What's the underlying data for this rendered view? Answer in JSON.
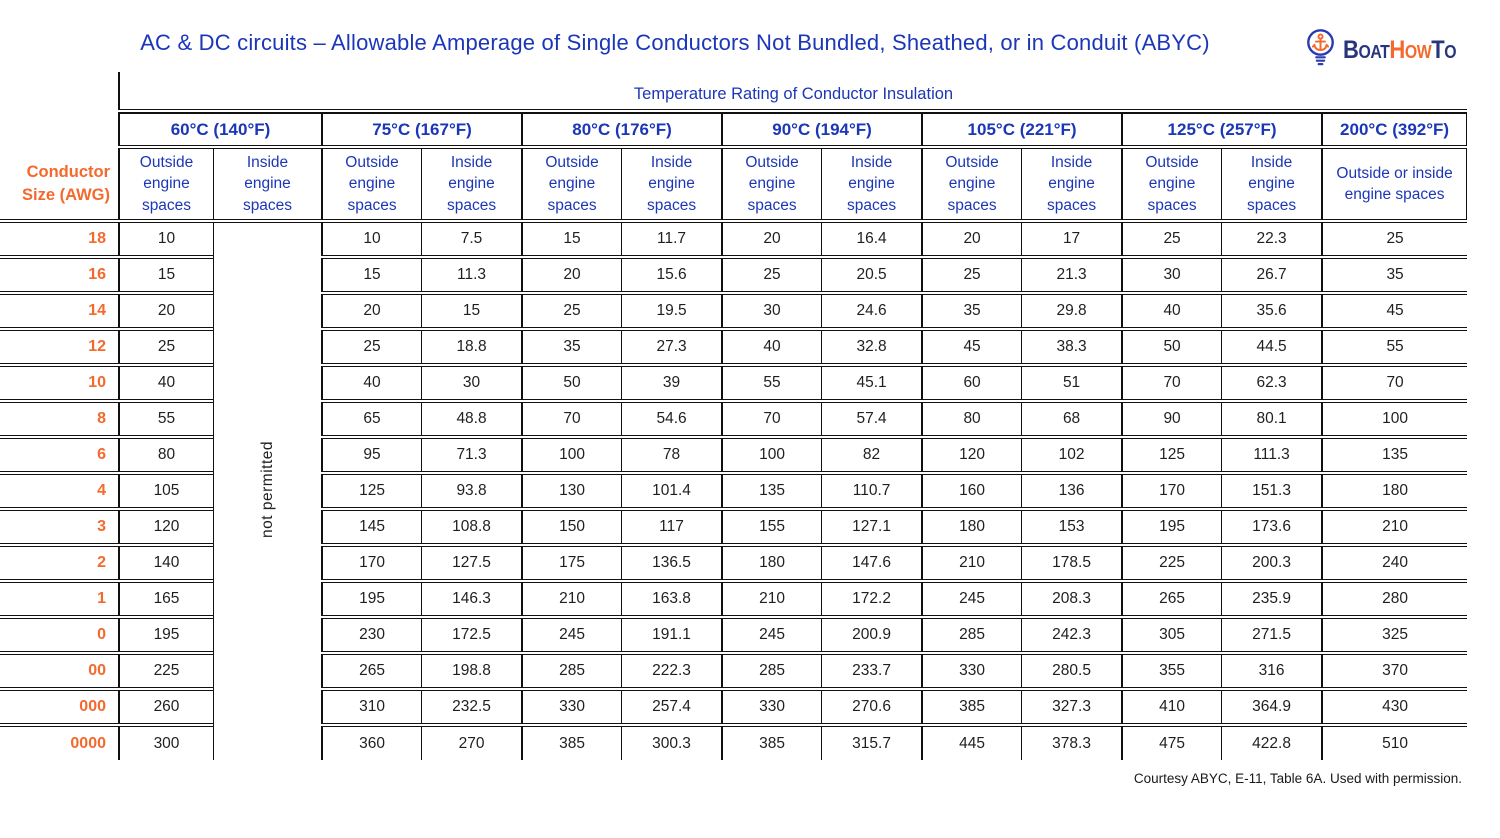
{
  "title": "AC & DC circuits – Allowable Amperage of Single Conductors Not Bundled, Sheathed, or in Conduit (ABYC)",
  "logo": {
    "icon": "anchor-lightbulb-icon",
    "text_parts": {
      "boat": "Boat",
      "how": "How",
      "to": "To"
    }
  },
  "colors": {
    "blue": "#1c36b8",
    "orange": "#f4692d",
    "logo_navy": "#28357e",
    "border": "#111111",
    "body_text": "#1f1f1f"
  },
  "table": {
    "super_header": "Temperature Rating of Conductor Insulation",
    "row_header": "Conductor\nSize (AWG)",
    "not_permitted": "not permitted",
    "temp_groups": [
      {
        "label": "60°C (140°F)",
        "cols": [
          "Outside engine spaces",
          "Inside engine spaces"
        ]
      },
      {
        "label": "75°C (167°F)",
        "cols": [
          "Outside engine spaces",
          "Inside engine spaces"
        ]
      },
      {
        "label": "80°C (176°F)",
        "cols": [
          "Outside engine spaces",
          "Inside engine spaces"
        ]
      },
      {
        "label": "90°C (194°F)",
        "cols": [
          "Outside engine spaces",
          "Inside engine spaces"
        ]
      },
      {
        "label": "105°C (221°F)",
        "cols": [
          "Outside engine spaces",
          "Inside engine spaces"
        ]
      },
      {
        "label": "125°C (257°F)",
        "cols": [
          "Outside engine spaces",
          "Inside engine spaces"
        ]
      },
      {
        "label": "200°C (392°F)",
        "cols": [
          "Outside or inside engine spaces"
        ]
      }
    ],
    "rows": [
      {
        "awg": "18",
        "values": [
          "10",
          "10",
          "7.5",
          "15",
          "11.7",
          "20",
          "16.4",
          "20",
          "17",
          "25",
          "22.3",
          "25"
        ]
      },
      {
        "awg": "16",
        "values": [
          "15",
          "15",
          "11.3",
          "20",
          "15.6",
          "25",
          "20.5",
          "25",
          "21.3",
          "30",
          "26.7",
          "35"
        ]
      },
      {
        "awg": "14",
        "values": [
          "20",
          "20",
          "15",
          "25",
          "19.5",
          "30",
          "24.6",
          "35",
          "29.8",
          "40",
          "35.6",
          "45"
        ]
      },
      {
        "awg": "12",
        "values": [
          "25",
          "25",
          "18.8",
          "35",
          "27.3",
          "40",
          "32.8",
          "45",
          "38.3",
          "50",
          "44.5",
          "55"
        ]
      },
      {
        "awg": "10",
        "values": [
          "40",
          "40",
          "30",
          "50",
          "39",
          "55",
          "45.1",
          "60",
          "51",
          "70",
          "62.3",
          "70"
        ]
      },
      {
        "awg": "8",
        "values": [
          "55",
          "65",
          "48.8",
          "70",
          "54.6",
          "70",
          "57.4",
          "80",
          "68",
          "90",
          "80.1",
          "100"
        ]
      },
      {
        "awg": "6",
        "values": [
          "80",
          "95",
          "71.3",
          "100",
          "78",
          "100",
          "82",
          "120",
          "102",
          "125",
          "111.3",
          "135"
        ]
      },
      {
        "awg": "4",
        "values": [
          "105",
          "125",
          "93.8",
          "130",
          "101.4",
          "135",
          "110.7",
          "160",
          "136",
          "170",
          "151.3",
          "180"
        ]
      },
      {
        "awg": "3",
        "values": [
          "120",
          "145",
          "108.8",
          "150",
          "117",
          "155",
          "127.1",
          "180",
          "153",
          "195",
          "173.6",
          "210"
        ]
      },
      {
        "awg": "2",
        "values": [
          "140",
          "170",
          "127.5",
          "175",
          "136.5",
          "180",
          "147.6",
          "210",
          "178.5",
          "225",
          "200.3",
          "240"
        ]
      },
      {
        "awg": "1",
        "values": [
          "165",
          "195",
          "146.3",
          "210",
          "163.8",
          "210",
          "172.2",
          "245",
          "208.3",
          "265",
          "235.9",
          "280"
        ]
      },
      {
        "awg": "0",
        "values": [
          "195",
          "230",
          "172.5",
          "245",
          "191.1",
          "245",
          "200.9",
          "285",
          "242.3",
          "305",
          "271.5",
          "325"
        ]
      },
      {
        "awg": "00",
        "values": [
          "225",
          "265",
          "198.8",
          "285",
          "222.3",
          "285",
          "233.7",
          "330",
          "280.5",
          "355",
          "316",
          "370"
        ]
      },
      {
        "awg": "000",
        "values": [
          "260",
          "310",
          "232.5",
          "330",
          "257.4",
          "330",
          "270.6",
          "385",
          "327.3",
          "410",
          "364.9",
          "430"
        ]
      },
      {
        "awg": "0000",
        "values": [
          "300",
          "360",
          "270",
          "385",
          "300.3",
          "385",
          "315.7",
          "445",
          "378.3",
          "475",
          "422.8",
          "510"
        ]
      }
    ]
  },
  "caption": "Courtesy ABYC, E-11, Table 6A. Used with permission."
}
